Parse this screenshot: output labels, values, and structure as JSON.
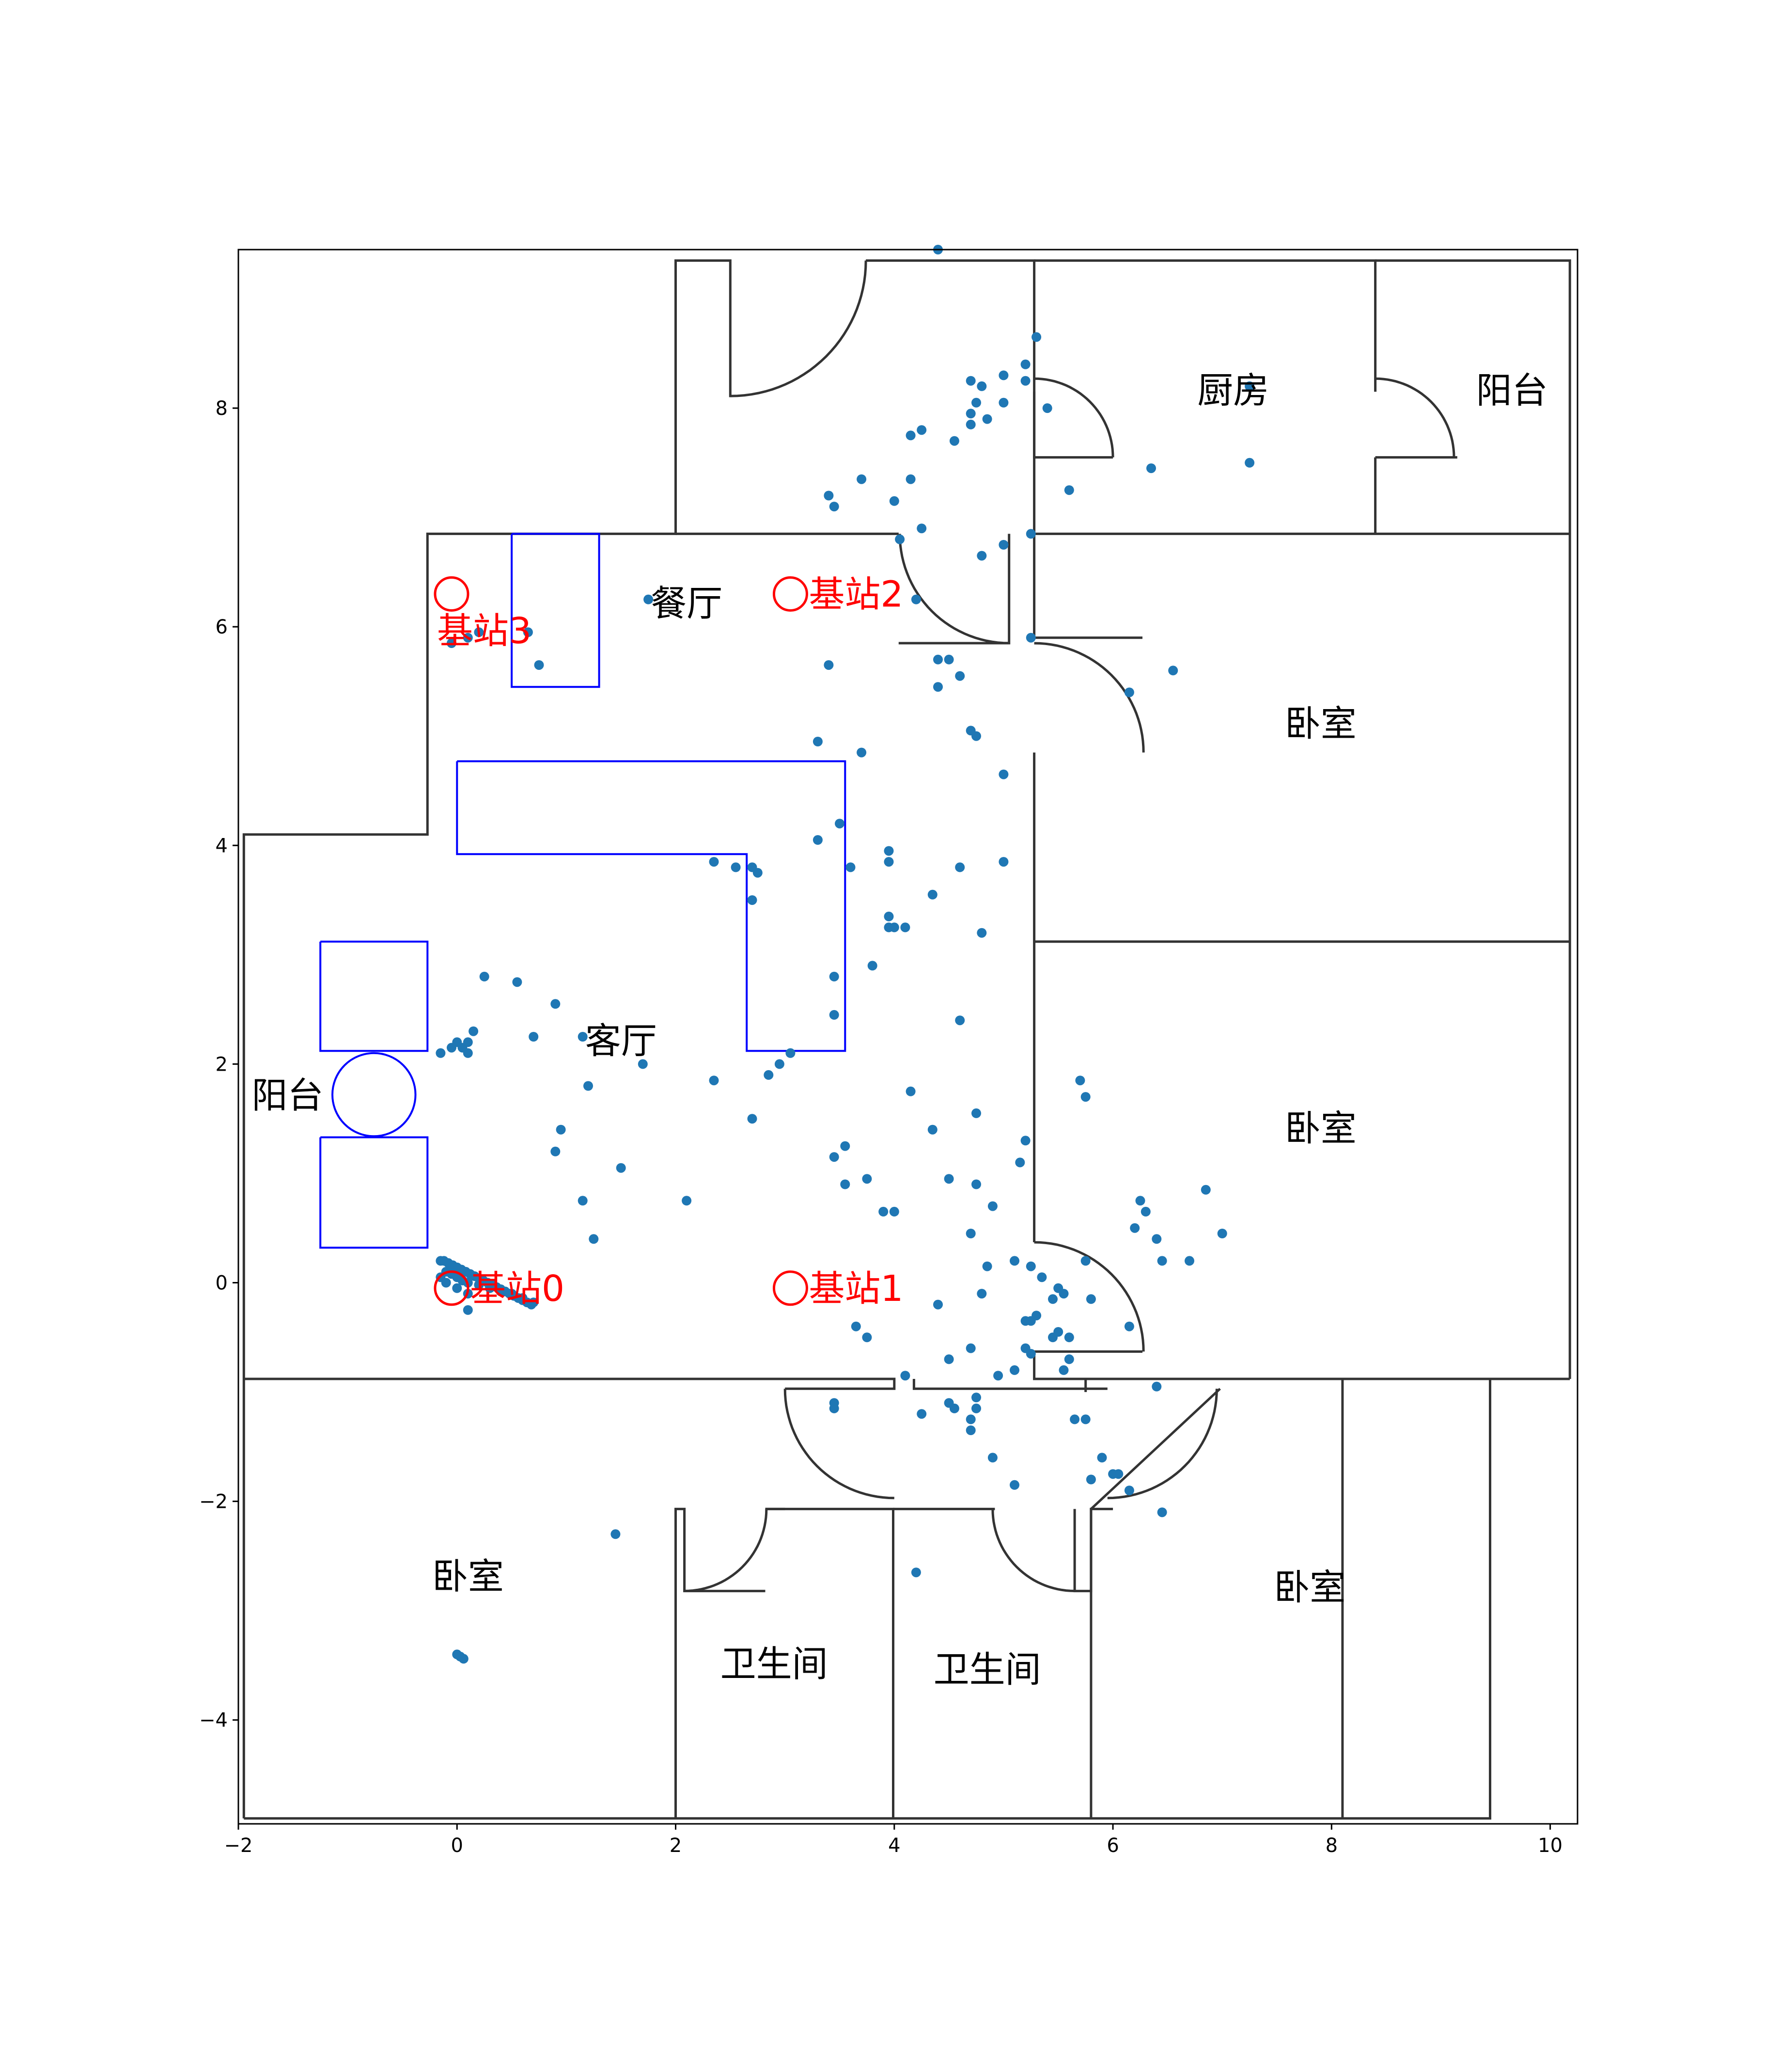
{
  "chart_data": {
    "type": "scatter",
    "xlim": [
      -2,
      10.25
    ],
    "ylim": [
      -4.95,
      9.45
    ],
    "x_ticks": [
      -2,
      0,
      2,
      4,
      6,
      8,
      10
    ],
    "y_ticks": [
      -4,
      -2,
      0,
      2,
      4,
      6,
      8
    ],
    "x_tick_labels": [
      "−2",
      "0",
      "2",
      "4",
      "6",
      "8",
      "10"
    ],
    "y_tick_labels": [
      "−4",
      "−2",
      "0",
      "2",
      "4",
      "6",
      "8"
    ],
    "grid": false,
    "point_color": "#1f77b4",
    "room_labels": [
      {
        "text": "厨房",
        "x": 7.1,
        "y": 8.05
      },
      {
        "text": "阳台",
        "x": 9.65,
        "y": 8.05
      },
      {
        "text": "餐厅",
        "x": 2.1,
        "y": 6.1
      },
      {
        "text": "卧室",
        "x": 7.9,
        "y": 5.0
      },
      {
        "text": "卧室",
        "x": 7.9,
        "y": 1.3
      },
      {
        "text": "客厅",
        "x": 1.5,
        "y": 2.1
      },
      {
        "text": "阳台",
        "x": -1.55,
        "y": 1.6
      },
      {
        "text": "卧室",
        "x": 0.1,
        "y": -2.8
      },
      {
        "text": "卧室",
        "x": 7.8,
        "y": -2.9
      },
      {
        "text": "卫生间",
        "x": 2.9,
        "y": -3.6
      },
      {
        "text": "卫生间",
        "x": 4.85,
        "y": -3.65
      }
    ],
    "stations": [
      {
        "label": "基站0",
        "x": -0.05,
        "y": -0.05
      },
      {
        "label": "基站1",
        "x": 3.05,
        "y": -0.05
      },
      {
        "label": "基站2",
        "x": 3.05,
        "y": 6.3
      },
      {
        "label": "基站3",
        "x": -0.05,
        "y": 6.3
      }
    ],
    "points": [
      [
        4.4,
        9.45
      ],
      [
        5.3,
        8.65
      ],
      [
        5.2,
        8.4
      ],
      [
        5.2,
        8.25
      ],
      [
        5.0,
        8.3
      ],
      [
        4.8,
        8.2
      ],
      [
        4.7,
        8.25
      ],
      [
        4.75,
        8.05
      ],
      [
        4.7,
        7.95
      ],
      [
        5.0,
        8.05
      ],
      [
        5.4,
        8.0
      ],
      [
        4.85,
        7.9
      ],
      [
        4.7,
        7.85
      ],
      [
        4.25,
        7.8
      ],
      [
        4.15,
        7.75
      ],
      [
        4.55,
        7.7
      ],
      [
        3.7,
        7.35
      ],
      [
        4.15,
        7.35
      ],
      [
        3.4,
        7.2
      ],
      [
        4.0,
        7.15
      ],
      [
        3.45,
        7.1
      ],
      [
        5.6,
        7.25
      ],
      [
        4.25,
        6.9
      ],
      [
        4.05,
        6.8
      ],
      [
        5.25,
        6.85
      ],
      [
        5.0,
        6.75
      ],
      [
        4.8,
        6.65
      ],
      [
        6.35,
        7.45
      ],
      [
        7.25,
        7.5
      ],
      [
        7.25,
        8.2
      ],
      [
        4.2,
        6.25
      ],
      [
        5.25,
        5.9
      ],
      [
        4.4,
        5.7
      ],
      [
        4.5,
        5.7
      ],
      [
        4.6,
        5.55
      ],
      [
        3.4,
        5.65
      ],
      [
        4.4,
        5.45
      ],
      [
        6.15,
        5.4
      ],
      [
        6.55,
        5.6
      ],
      [
        4.7,
        5.05
      ],
      [
        4.75,
        5.0
      ],
      [
        3.3,
        4.95
      ],
      [
        3.7,
        4.85
      ],
      [
        5.0,
        4.65
      ],
      [
        3.5,
        4.2
      ],
      [
        3.3,
        4.05
      ],
      [
        3.95,
        3.95
      ],
      [
        3.95,
        3.85
      ],
      [
        3.6,
        3.8
      ],
      [
        4.6,
        3.8
      ],
      [
        5.0,
        3.85
      ],
      [
        2.35,
        3.85
      ],
      [
        2.55,
        3.8
      ],
      [
        2.7,
        3.8
      ],
      [
        2.75,
        3.75
      ],
      [
        2.7,
        3.5
      ],
      [
        4.35,
        3.55
      ],
      [
        3.95,
        3.35
      ],
      [
        3.95,
        3.25
      ],
      [
        4.0,
        3.25
      ],
      [
        4.1,
        3.25
      ],
      [
        4.8,
        3.2
      ],
      [
        3.8,
        2.9
      ],
      [
        3.45,
        2.8
      ],
      [
        3.45,
        2.45
      ],
      [
        4.6,
        2.4
      ],
      [
        0.25,
        2.8
      ],
      [
        0.55,
        2.75
      ],
      [
        0.9,
        2.55
      ],
      [
        0.7,
        2.25
      ],
      [
        1.15,
        2.25
      ],
      [
        0.15,
        2.3
      ],
      [
        0.1,
        2.2
      ],
      [
        0.05,
        2.15
      ],
      [
        0.0,
        2.2
      ],
      [
        -0.05,
        2.15
      ],
      [
        -0.15,
        2.1
      ],
      [
        0.1,
        2.1
      ],
      [
        1.7,
        2.0
      ],
      [
        3.05,
        2.1
      ],
      [
        2.95,
        2.0
      ],
      [
        2.85,
        1.9
      ],
      [
        2.35,
        1.85
      ],
      [
        1.2,
        1.8
      ],
      [
        4.15,
        1.75
      ],
      [
        5.7,
        1.85
      ],
      [
        5.75,
        1.7
      ],
      [
        4.75,
        1.55
      ],
      [
        2.7,
        1.5
      ],
      [
        4.35,
        1.4
      ],
      [
        0.95,
        1.4
      ],
      [
        5.2,
        1.3
      ],
      [
        5.15,
        1.1
      ],
      [
        3.55,
        1.25
      ],
      [
        3.45,
        1.15
      ],
      [
        0.9,
        1.2
      ],
      [
        1.5,
        1.05
      ],
      [
        3.75,
        0.95
      ],
      [
        4.5,
        0.95
      ],
      [
        4.75,
        0.9
      ],
      [
        3.55,
        0.9
      ],
      [
        6.85,
        0.85
      ],
      [
        1.15,
        0.75
      ],
      [
        2.1,
        0.75
      ],
      [
        4.9,
        0.7
      ],
      [
        3.9,
        0.65
      ],
      [
        4.0,
        0.65
      ],
      [
        6.25,
        0.75
      ],
      [
        6.3,
        0.65
      ],
      [
        6.2,
        0.5
      ],
      [
        6.4,
        0.4
      ],
      [
        7.0,
        0.45
      ],
      [
        4.7,
        0.45
      ],
      [
        1.25,
        0.4
      ],
      [
        5.75,
        0.2
      ],
      [
        6.45,
        0.2
      ],
      [
        6.7,
        0.2
      ],
      [
        5.1,
        0.2
      ],
      [
        5.25,
        0.15
      ],
      [
        4.85,
        0.15
      ],
      [
        5.35,
        0.05
      ],
      [
        5.5,
        -0.05
      ],
      [
        5.55,
        -0.1
      ],
      [
        5.45,
        -0.15
      ],
      [
        5.8,
        -0.15
      ],
      [
        4.8,
        -0.1
      ],
      [
        4.4,
        -0.2
      ],
      [
        5.3,
        -0.3
      ],
      [
        5.25,
        -0.35
      ],
      [
        5.2,
        -0.35
      ],
      [
        6.15,
        -0.4
      ],
      [
        3.65,
        -0.4
      ],
      [
        3.75,
        -0.5
      ],
      [
        5.5,
        -0.45
      ],
      [
        5.6,
        -0.5
      ],
      [
        5.45,
        -0.5
      ],
      [
        5.2,
        -0.6
      ],
      [
        5.25,
        -0.65
      ],
      [
        4.7,
        -0.6
      ],
      [
        4.5,
        -0.7
      ],
      [
        5.6,
        -0.7
      ],
      [
        5.1,
        -0.8
      ],
      [
        5.55,
        -0.8
      ],
      [
        4.95,
        -0.85
      ],
      [
        4.1,
        -0.85
      ],
      [
        6.4,
        -0.95
      ],
      [
        4.75,
        -1.05
      ],
      [
        4.5,
        -1.1
      ],
      [
        4.55,
        -1.15
      ],
      [
        3.45,
        -1.1
      ],
      [
        3.45,
        -1.15
      ],
      [
        4.25,
        -1.2
      ],
      [
        4.75,
        -1.15
      ],
      [
        4.7,
        -1.25
      ],
      [
        4.7,
        -1.35
      ],
      [
        5.75,
        -1.25
      ],
      [
        5.65,
        -1.25
      ],
      [
        4.9,
        -1.6
      ],
      [
        5.9,
        -1.6
      ],
      [
        5.8,
        -1.8
      ],
      [
        6.0,
        -1.75
      ],
      [
        6.05,
        -1.75
      ],
      [
        5.1,
        -1.85
      ],
      [
        6.15,
        -1.9
      ],
      [
        6.45,
        -2.1
      ],
      [
        1.45,
        -2.3
      ],
      [
        4.2,
        -2.65
      ],
      [
        0.0,
        -3.4
      ],
      [
        0.03,
        -3.42
      ],
      [
        0.06,
        -3.44
      ],
      [
        0.1,
        -0.25
      ],
      [
        -0.15,
        0.05
      ],
      [
        -0.15,
        0.2
      ],
      [
        -0.12,
        0.2
      ],
      [
        -0.08,
        0.18
      ],
      [
        -0.04,
        0.16
      ],
      [
        0.0,
        0.14
      ],
      [
        0.04,
        0.12
      ],
      [
        0.08,
        0.1
      ],
      [
        0.12,
        0.08
      ],
      [
        0.16,
        0.06
      ],
      [
        0.2,
        0.04
      ],
      [
        0.24,
        0.02
      ],
      [
        0.28,
        0.0
      ],
      [
        0.32,
        -0.02
      ],
      [
        0.36,
        -0.04
      ],
      [
        0.4,
        -0.06
      ],
      [
        0.44,
        -0.08
      ],
      [
        0.48,
        -0.1
      ],
      [
        0.52,
        -0.12
      ],
      [
        0.56,
        -0.14
      ],
      [
        0.6,
        -0.16
      ],
      [
        0.64,
        -0.18
      ],
      [
        0.68,
        -0.2
      ],
      [
        -0.1,
        0.1
      ],
      [
        -0.05,
        0.08
      ],
      [
        0.0,
        0.05
      ],
      [
        0.05,
        0.02
      ],
      [
        0.1,
        0.0
      ],
      [
        0.2,
        -0.02
      ],
      [
        0.3,
        -0.05
      ],
      [
        0.4,
        -0.08
      ],
      [
        0.5,
        -0.1
      ],
      [
        0.6,
        -0.14
      ],
      [
        0.7,
        -0.18
      ],
      [
        -0.1,
        0.0
      ],
      [
        0.0,
        -0.05
      ],
      [
        0.1,
        -0.1
      ],
      [
        1.75,
        6.25
      ],
      [
        0.1,
        5.9
      ],
      [
        0.2,
        5.95
      ],
      [
        0.65,
        5.95
      ],
      [
        0.75,
        5.65
      ],
      [
        -0.05,
        5.85
      ]
    ]
  }
}
